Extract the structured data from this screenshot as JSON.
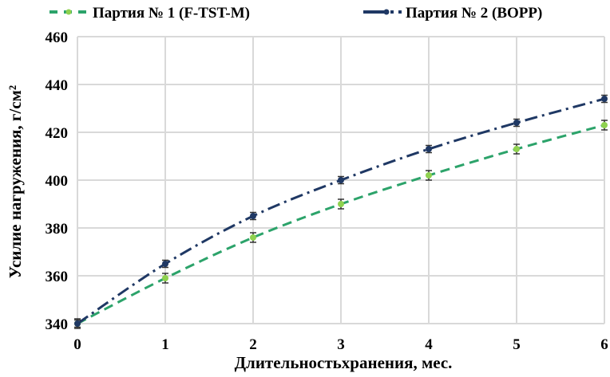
{
  "chart_data": {
    "type": "line",
    "title": "",
    "xlabel": "Длительностьхранения, мес.",
    "ylabel": "Усилие нагружения, г/см²",
    "x": [
      0,
      1,
      2,
      3,
      4,
      5,
      6
    ],
    "xlim": [
      0,
      6
    ],
    "ylim": [
      340,
      460
    ],
    "xticks": [
      "0",
      "1",
      "2",
      "3",
      "4",
      "5",
      "6"
    ],
    "yticks": [
      "340",
      "360",
      "380",
      "400",
      "420",
      "440",
      "460"
    ],
    "grid": true,
    "legend_position": "top",
    "series": [
      {
        "name": "Партия № 1 (F-TST-M)",
        "values": [
          340,
          359,
          376,
          390,
          402,
          413,
          423
        ],
        "error": 2,
        "line_color": "#2ca36a",
        "marker_color": "#8fd14f",
        "line_style": "dashed"
      },
      {
        "name": "Партия № 2 (BOPP)",
        "values": [
          340,
          365,
          385,
          400,
          413,
          424,
          434
        ],
        "error": 1.5,
        "line_color": "#1f3864",
        "marker_color": "#1f3864",
        "line_style": "dash-dot"
      }
    ]
  }
}
